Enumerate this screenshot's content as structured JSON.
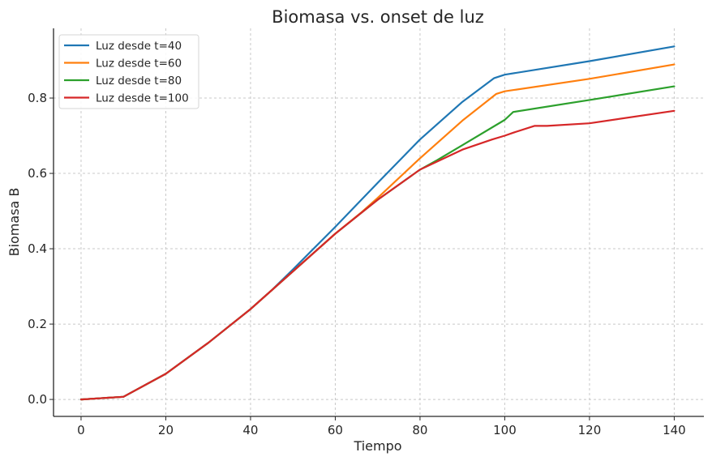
{
  "chart_data": {
    "type": "line",
    "title": "Biomasa vs. onset de luz",
    "xlabel": "Tiempo",
    "ylabel": "Biomasa B",
    "xlim": [
      -6.5,
      147
    ],
    "ylim": [
      -0.045,
      0.985
    ],
    "xticks": [
      0,
      20,
      40,
      60,
      80,
      100,
      120,
      140
    ],
    "xtick_labels": [
      "0",
      "20",
      "40",
      "60",
      "80",
      "100",
      "120",
      "140"
    ],
    "yticks": [
      0.0,
      0.2,
      0.4,
      0.6,
      0.8
    ],
    "ytick_labels": [
      "0.0",
      "0.2",
      "0.4",
      "0.6",
      "0.8"
    ],
    "grid": true,
    "legend_position": "top-left",
    "series": [
      {
        "name": "Luz desde t=40",
        "color": "#1f77b4",
        "x": [
          0,
          10,
          20,
          30,
          40,
          45,
          50,
          60,
          70,
          80,
          90,
          97.5,
          100,
          120,
          140
        ],
        "y": [
          0,
          0.007,
          0.068,
          0.15,
          0.24,
          0.29,
          0.345,
          0.458,
          0.575,
          0.69,
          0.79,
          0.853,
          0.862,
          0.898,
          0.937
        ]
      },
      {
        "name": "Luz desde t=60",
        "color": "#ff7f0e",
        "x": [
          0,
          10,
          20,
          30,
          40,
          50,
          60,
          66,
          70,
          80,
          90,
          98,
          100,
          120,
          140
        ],
        "y": [
          0,
          0.007,
          0.068,
          0.15,
          0.24,
          0.34,
          0.44,
          0.495,
          0.535,
          0.64,
          0.74,
          0.811,
          0.818,
          0.851,
          0.889
        ]
      },
      {
        "name": "Luz desde t=80",
        "color": "#2ca02c",
        "x": [
          0,
          10,
          20,
          30,
          40,
          50,
          60,
          70,
          80,
          84,
          90,
          100,
          102,
          120,
          140
        ],
        "y": [
          0,
          0.007,
          0.068,
          0.15,
          0.24,
          0.34,
          0.44,
          0.53,
          0.61,
          0.635,
          0.675,
          0.742,
          0.763,
          0.795,
          0.831
        ]
      },
      {
        "name": "Luz desde t=100",
        "color": "#d62728",
        "x": [
          0,
          10,
          20,
          30,
          40,
          50,
          60,
          70,
          80,
          90,
          97,
          100,
          102,
          107,
          110,
          120,
          140
        ],
        "y": [
          0,
          0.007,
          0.068,
          0.15,
          0.24,
          0.34,
          0.44,
          0.53,
          0.61,
          0.663,
          0.69,
          0.7,
          0.708,
          0.726,
          0.726,
          0.733,
          0.766
        ]
      }
    ]
  }
}
